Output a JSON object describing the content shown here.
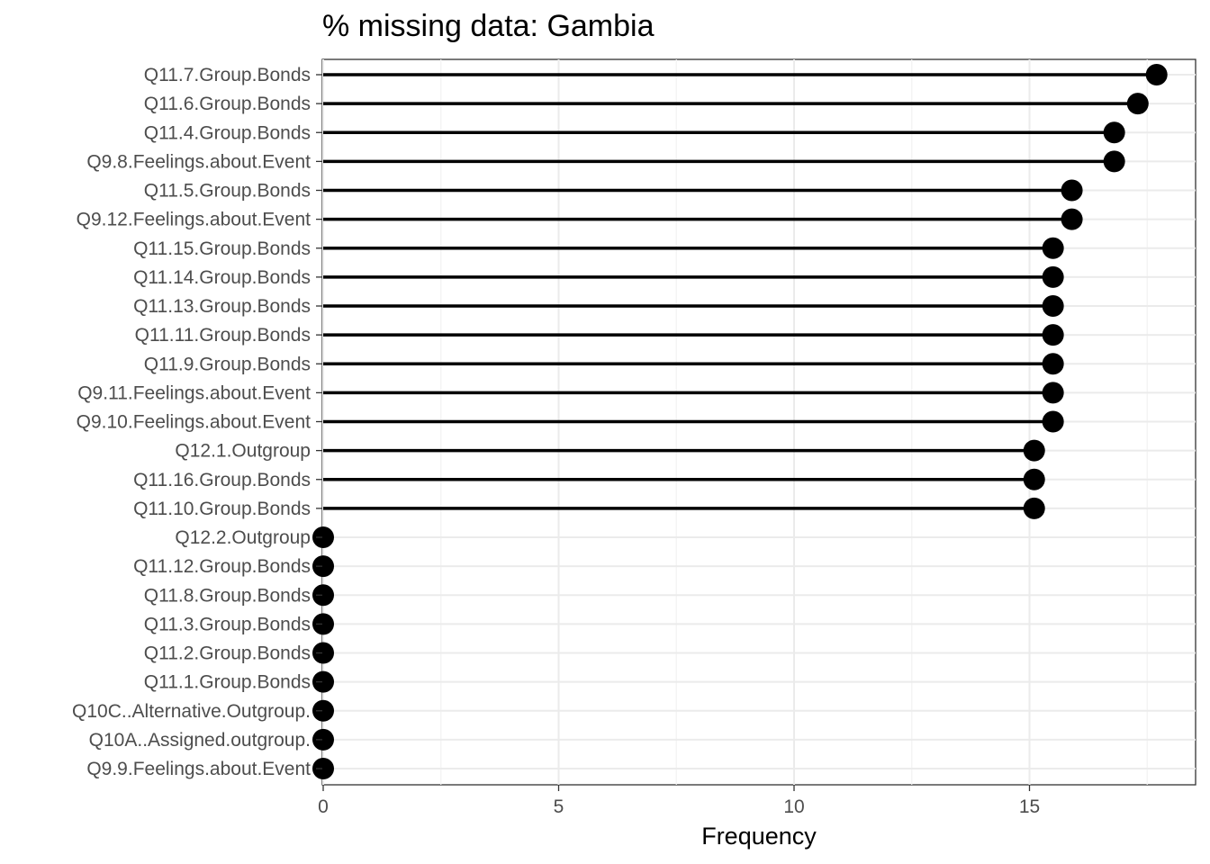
{
  "chart_data": {
    "type": "lollipop",
    "title": "% missing data: Gambia",
    "xlabel": "Frequency",
    "ylabel": "",
    "xlim": [
      0,
      18.6
    ],
    "xticks": [
      0,
      5,
      10,
      15
    ],
    "grid": true,
    "orientation": "horizontal",
    "categories": [
      "Q11.7.Group.Bonds",
      "Q11.6.Group.Bonds",
      "Q11.4.Group.Bonds",
      "Q9.8.Feelings.about.Event",
      "Q11.5.Group.Bonds",
      "Q9.12.Feelings.about.Event",
      "Q11.15.Group.Bonds",
      "Q11.14.Group.Bonds",
      "Q11.13.Group.Bonds",
      "Q11.11.Group.Bonds",
      "Q11.9.Group.Bonds",
      "Q9.11.Feelings.about.Event",
      "Q9.10.Feelings.about.Event",
      "Q12.1.Outgroup",
      "Q11.16.Group.Bonds",
      "Q11.10.Group.Bonds",
      "Q12.2.Outgroup",
      "Q11.12.Group.Bonds",
      "Q11.8.Group.Bonds",
      "Q11.3.Group.Bonds",
      "Q11.2.Group.Bonds",
      "Q11.1.Group.Bonds",
      "Q10C..Alternative.Outgroup.",
      "Q10A..Assigned.outgroup.",
      "Q9.9.Feelings.about.Event"
    ],
    "values": [
      17.7,
      17.3,
      16.8,
      16.8,
      15.9,
      15.9,
      15.5,
      15.5,
      15.5,
      15.5,
      15.5,
      15.5,
      15.5,
      15.1,
      15.1,
      15.1,
      0,
      0,
      0,
      0,
      0,
      0,
      0,
      0,
      0
    ]
  }
}
